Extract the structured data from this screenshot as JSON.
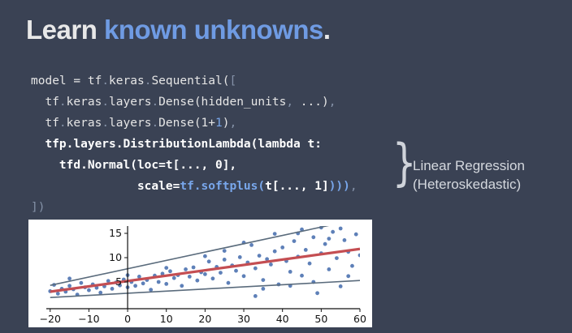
{
  "slide": {
    "title_part1": "Learn ",
    "title_part2": "known unknowns",
    "title_part3": ".",
    "code": {
      "l1_a": "model = tf",
      "l1_b": ".",
      "l1_c": "keras",
      "l1_d": ".",
      "l1_e": "Sequential(",
      "l1_f": "[",
      "l2_a": "  tf",
      "l2_b": ".",
      "l2_c": "keras",
      "l2_d": ".",
      "l2_e": "layers",
      "l2_f": ".",
      "l2_g": "Dense(hidden_units",
      "l2_h": ",",
      "l2_i": " ...)",
      "l2_j": ",",
      "l3_a": "  tf",
      "l3_b": ".",
      "l3_c": "keras",
      "l3_d": ".",
      "l3_e": "layers",
      "l3_f": ".",
      "l3_g": "Dense(1+",
      "l3_h": "1",
      "l3_i": ")",
      "l3_j": ",",
      "l4": "  tfp.layers.DistributionLambda(lambda t:",
      "l5": "    tfd.Normal(loc=t[..., 0],",
      "l6_pad": "               ",
      "l6_a": "scale=",
      "l6_b": "tf.softplus(",
      "l6_c": "t[..., 1]",
      "l6_d": ")))",
      "l6_e": ",",
      "l7": "])"
    },
    "annotation_line1": "Linear Regression",
    "annotation_line2": "(Heteroskedastic)"
  },
  "chart_data": {
    "type": "scatter",
    "title": "",
    "xlabel": "",
    "ylabel": "",
    "xlim": [
      -21,
      60
    ],
    "ylim": [
      -0.5,
      16.5
    ],
    "x_ticks": [
      -20,
      -10,
      0,
      10,
      20,
      30,
      40,
      50,
      60
    ],
    "y_ticks": [
      5,
      10,
      15
    ],
    "x_tick_labels": [
      "−20",
      "−10",
      "0",
      "10",
      "20",
      "30",
      "40",
      "50",
      "60"
    ],
    "y_tick_labels": [
      "5",
      "10",
      "15"
    ],
    "grid": false,
    "points_color": "#4c72b0",
    "mean_line_color": "#c44e52",
    "band_line_color": "#5a6b7c",
    "mean_line": [
      [
        -20,
        3.0
      ],
      [
        60,
        11.8
      ]
    ],
    "upper_band": [
      [
        -20,
        4.3
      ],
      [
        60,
        18.0
      ]
    ],
    "lower_band": [
      [
        -20,
        1.8
      ],
      [
        60,
        5.3
      ]
    ],
    "points": [
      [
        -20,
        3.1
      ],
      [
        -19,
        4.4
      ],
      [
        -18,
        2.6
      ],
      [
        -17,
        3.6
      ],
      [
        -16,
        3.0
      ],
      [
        -15,
        4.2
      ],
      [
        -14,
        3.5
      ],
      [
        -13,
        2.4
      ],
      [
        -12,
        4.8
      ],
      [
        -11,
        3.9
      ],
      [
        -10,
        3.3
      ],
      [
        -9,
        4.5
      ],
      [
        -8,
        3.8
      ],
      [
        -7,
        2.8
      ],
      [
        -6,
        4.1
      ],
      [
        -5,
        5.2
      ],
      [
        -4,
        3.6
      ],
      [
        -3,
        4.9
      ],
      [
        -2,
        4.3
      ],
      [
        -1,
        5.5
      ],
      [
        0,
        3.9
      ],
      [
        1,
        5.0
      ],
      [
        2,
        4.2
      ],
      [
        3,
        6.1
      ],
      [
        4,
        4.7
      ],
      [
        5,
        5.4
      ],
      [
        6,
        3.4
      ],
      [
        7,
        6.3
      ],
      [
        8,
        5.0
      ],
      [
        9,
        6.7
      ],
      [
        10,
        4.6
      ],
      [
        11,
        7.2
      ],
      [
        12,
        5.8
      ],
      [
        13,
        6.4
      ],
      [
        14,
        4.2
      ],
      [
        15,
        7.6
      ],
      [
        16,
        6.1
      ],
      [
        17,
        8.0
      ],
      [
        18,
        5.3
      ],
      [
        19,
        7.0
      ],
      [
        20,
        6.6
      ],
      [
        21,
        9.2
      ],
      [
        22,
        5.7
      ],
      [
        23,
        8.1
      ],
      [
        24,
        6.9
      ],
      [
        25,
        9.6
      ],
      [
        26,
        4.8
      ],
      [
        27,
        8.4
      ],
      [
        28,
        7.3
      ],
      [
        29,
        10.1
      ],
      [
        30,
        6.2
      ],
      [
        31,
        9.0
      ],
      [
        32,
        12.6
      ],
      [
        33,
        7.8
      ],
      [
        34,
        10.4
      ],
      [
        35,
        5.4
      ],
      [
        36,
        9.7
      ],
      [
        37,
        8.6
      ],
      [
        38,
        11.3
      ],
      [
        39,
        4.5
      ],
      [
        40,
        12.1
      ],
      [
        41,
        9.3
      ],
      [
        42,
        7.1
      ],
      [
        43,
        13.4
      ],
      [
        44,
        10.2
      ],
      [
        45,
        6.3
      ],
      [
        46,
        11.6
      ],
      [
        47,
        8.8
      ],
      [
        48,
        14.2
      ],
      [
        49,
        2.7
      ],
      [
        50,
        10.9
      ],
      [
        51,
        12.8
      ],
      [
        52,
        7.6
      ],
      [
        53,
        15.3
      ],
      [
        54,
        9.9
      ],
      [
        55,
        4.1
      ],
      [
        56,
        13.6
      ],
      [
        57,
        11.2
      ],
      [
        58,
        8.3
      ],
      [
        59,
        14.8
      ],
      [
        60,
        10.5
      ],
      [
        45,
        15.8
      ],
      [
        38,
        14.9
      ],
      [
        50,
        16.2
      ],
      [
        30,
        13.1
      ],
      [
        25,
        11.4
      ],
      [
        55,
        16.0
      ],
      [
        20,
        10.3
      ],
      [
        -15,
        5.7
      ],
      [
        0,
        6.4
      ],
      [
        10,
        7.9
      ],
      [
        35,
        3.6
      ],
      [
        42,
        4.2
      ],
      [
        48,
        5.0
      ],
      [
        57,
        6.2
      ],
      [
        33,
        2.1
      ],
      [
        44,
        15.0
      ],
      [
        52,
        13.9
      ]
    ]
  }
}
